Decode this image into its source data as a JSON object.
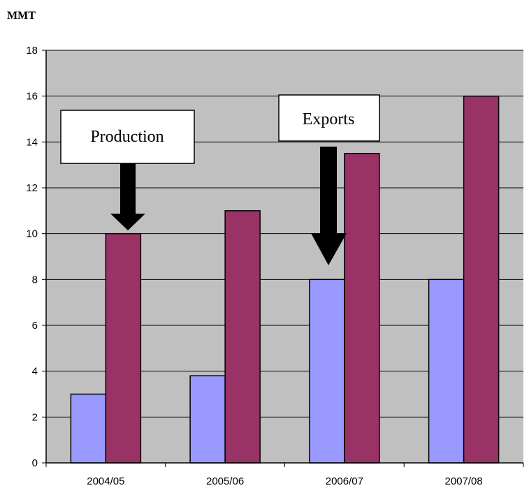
{
  "chart_data": {
    "type": "bar",
    "ylabel": "MMT",
    "categories": [
      "2004/05",
      "2005/06",
      "2006/07",
      "2007/08"
    ],
    "series": [
      {
        "values": [
          3.0,
          3.8,
          8.0,
          8.0
        ]
      },
      {
        "values": [
          10.0,
          11.0,
          13.5,
          16.0
        ]
      }
    ],
    "ylim": [
      0,
      18
    ],
    "ytick_labels": [
      "0",
      "2",
      "4",
      "6",
      "8",
      "10",
      "12",
      "14",
      "16",
      "18"
    ],
    "grid": true,
    "colors": {
      "plot_background": "#c0c0c0",
      "series_1": "#9999ff",
      "series_2": "#993366"
    },
    "annotations": [
      {
        "text": "Production",
        "points_to": {
          "category": "2004/05",
          "series_index": 1
        }
      },
      {
        "text": "Exports",
        "points_to": {
          "category": "2006/07",
          "series_index": 0
        }
      }
    ]
  }
}
